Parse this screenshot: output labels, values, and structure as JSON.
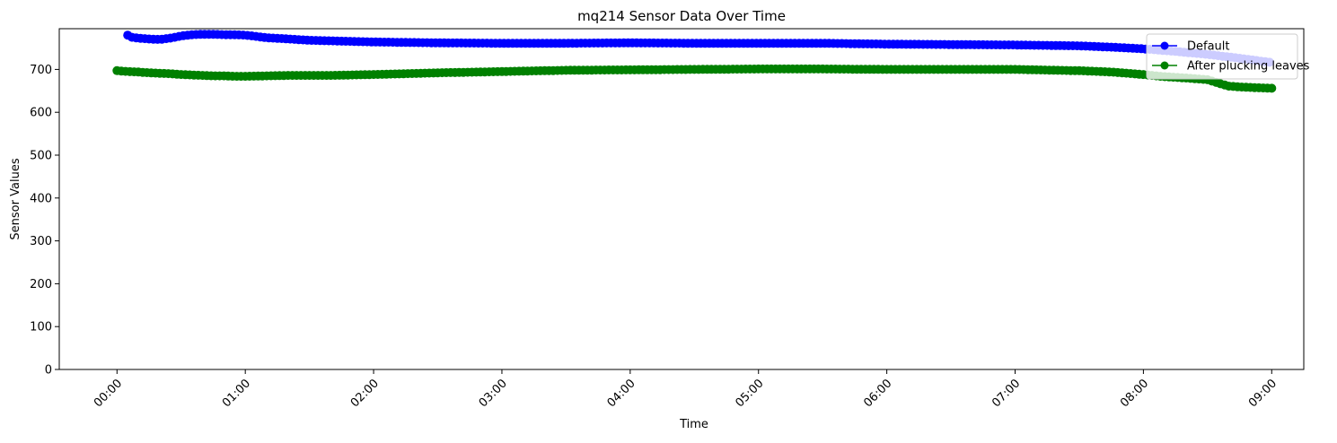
{
  "chart_data": {
    "type": "line",
    "title": "mq214 Sensor Data Over Time",
    "xlabel": "Time",
    "ylabel": "Sensor Values",
    "x_ticks": [
      "00:00",
      "01:00",
      "02:00",
      "03:00",
      "04:00",
      "05:00",
      "06:00",
      "07:00",
      "08:00",
      "09:00"
    ],
    "y_ticks": [
      "0",
      "100",
      "200",
      "300",
      "400",
      "500",
      "600",
      "700"
    ],
    "xlim": [
      "23:33",
      "09:15"
    ],
    "ylim": [
      0,
      795
    ],
    "grid": false,
    "legend_position": "top-right",
    "series": [
      {
        "name": "Default",
        "color": "#0000ff",
        "marker": "circle",
        "points": [
          [
            "00:05",
            780
          ],
          [
            "00:07",
            775
          ],
          [
            "00:10",
            773
          ],
          [
            "00:15",
            771
          ],
          [
            "00:20",
            770
          ],
          [
            "00:25",
            773
          ],
          [
            "00:30",
            778
          ],
          [
            "00:35",
            781
          ],
          [
            "00:40",
            782
          ],
          [
            "00:45",
            782
          ],
          [
            "00:50",
            781
          ],
          [
            "00:55",
            781
          ],
          [
            "01:00",
            780
          ],
          [
            "01:05",
            777
          ],
          [
            "01:10",
            774
          ],
          [
            "01:20",
            771
          ],
          [
            "01:30",
            768
          ],
          [
            "01:45",
            766
          ],
          [
            "02:00",
            764
          ],
          [
            "02:30",
            762
          ],
          [
            "03:00",
            761
          ],
          [
            "03:30",
            761
          ],
          [
            "04:00",
            762
          ],
          [
            "04:30",
            761
          ],
          [
            "05:00",
            761
          ],
          [
            "05:30",
            761
          ],
          [
            "06:00",
            759
          ],
          [
            "06:30",
            758
          ],
          [
            "07:00",
            757
          ],
          [
            "07:30",
            755
          ],
          [
            "07:45",
            752
          ],
          [
            "08:00",
            748
          ],
          [
            "08:15",
            742
          ],
          [
            "08:30",
            735
          ],
          [
            "08:45",
            726
          ],
          [
            "09:00",
            716
          ]
        ]
      },
      {
        "name": "After plucking leaves",
        "color": "#008000",
        "marker": "circle",
        "points": [
          [
            "00:00",
            697
          ],
          [
            "00:05",
            695
          ],
          [
            "00:10",
            694
          ],
          [
            "00:15",
            692
          ],
          [
            "00:20",
            691
          ],
          [
            "00:25",
            690
          ],
          [
            "00:30",
            688
          ],
          [
            "00:35",
            687
          ],
          [
            "00:40",
            686
          ],
          [
            "00:45",
            685
          ],
          [
            "00:50",
            685
          ],
          [
            "00:55",
            684
          ],
          [
            "01:00",
            684
          ],
          [
            "01:10",
            685
          ],
          [
            "01:20",
            686
          ],
          [
            "01:40",
            686
          ],
          [
            "02:00",
            688
          ],
          [
            "02:30",
            692
          ],
          [
            "03:00",
            695
          ],
          [
            "03:30",
            698
          ],
          [
            "04:00",
            699
          ],
          [
            "04:30",
            700
          ],
          [
            "05:00",
            701
          ],
          [
            "05:30",
            701
          ],
          [
            "06:00",
            700
          ],
          [
            "06:30",
            700
          ],
          [
            "07:00",
            700
          ],
          [
            "07:30",
            697
          ],
          [
            "07:45",
            694
          ],
          [
            "08:00",
            688
          ],
          [
            "08:10",
            683
          ],
          [
            "08:20",
            680
          ],
          [
            "08:30",
            676
          ],
          [
            "08:35",
            668
          ],
          [
            "08:40",
            661
          ],
          [
            "08:45",
            659
          ],
          [
            "08:50",
            658
          ],
          [
            "09:00",
            656
          ]
        ]
      }
    ]
  }
}
